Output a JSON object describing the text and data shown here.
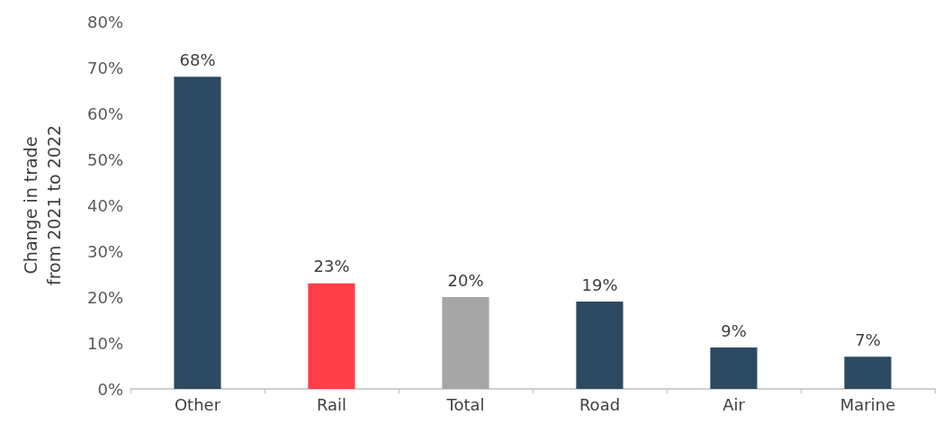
{
  "chart_data": {
    "type": "bar",
    "ylabel": "Change in trade\nfrom 2021 to 2022",
    "categories": [
      "Other",
      "Rail",
      "Total",
      "Road",
      "Air",
      "Marine"
    ],
    "values": [
      68,
      23,
      20,
      19,
      9,
      7
    ],
    "colors": [
      "#2c4a62",
      "#ff3e47",
      "#a6a6a6",
      "#2c4a62",
      "#2c4a62",
      "#2c4a62"
    ],
    "value_labels": [
      "68%",
      "23%",
      "20%",
      "19%",
      "9%",
      "7%"
    ],
    "ylim": [
      0,
      80
    ],
    "yticks": [
      {
        "value": 0,
        "label": "0%"
      },
      {
        "value": 10,
        "label": "10%"
      },
      {
        "value": 20,
        "label": "20%"
      },
      {
        "value": 30,
        "label": "30%"
      },
      {
        "value": 40,
        "label": "40%"
      },
      {
        "value": 50,
        "label": "50%"
      },
      {
        "value": 60,
        "label": "60%"
      },
      {
        "value": 70,
        "label": "70%"
      },
      {
        "value": 80,
        "label": "80%"
      }
    ],
    "grid": false
  }
}
